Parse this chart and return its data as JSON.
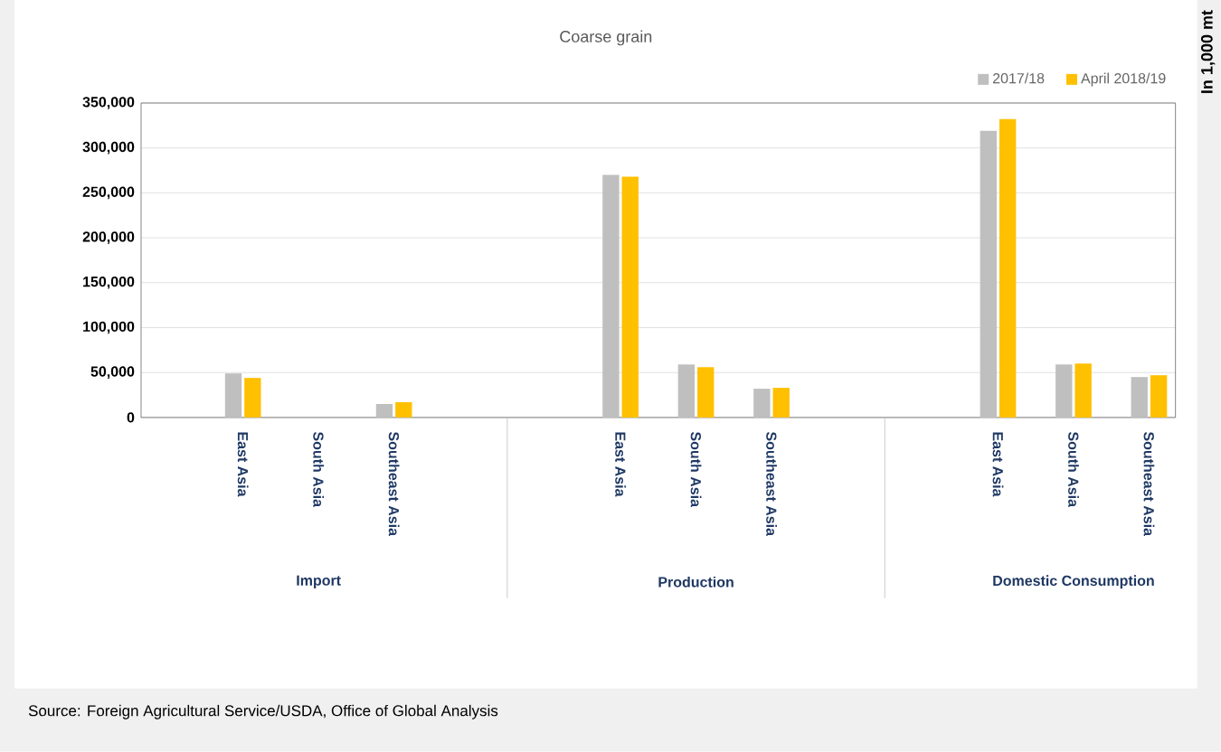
{
  "chart_data": {
    "type": "bar",
    "title": "Coarse grain",
    "categories": [
      "East Asia",
      "South Asia",
      "Southeast Asia",
      null,
      null,
      "East Asia",
      "South Asia",
      "Southeast Asia",
      null,
      null,
      "East Asia",
      "South Asia",
      "Southeast Asia"
    ],
    "series": [
      {
        "name": "2017/18",
        "color": "#bfbfbf",
        "values": [
          49000,
          0,
          15000,
          null,
          null,
          270000,
          59000,
          32000,
          null,
          null,
          319000,
          59000,
          45000
        ]
      },
      {
        "name": "April 2018/19",
        "color": "#ffc000",
        "values": [
          44000,
          0,
          17000,
          null,
          null,
          268000,
          56000,
          33000,
          null,
          null,
          332000,
          60000,
          47000
        ]
      }
    ],
    "ylim": [
      0,
      350000
    ],
    "yticks": [
      0,
      {
        "value": 50000,
        "label": "50,000"
      },
      {
        "value": 100000,
        "label": "100,000"
      },
      {
        "value": 150000,
        "label": "150,000"
      },
      {
        "value": 200000,
        "label": "200,000"
      },
      {
        "value": 250000,
        "label": "250,000"
      },
      {
        "value": 300000,
        "label": "300,000"
      },
      {
        "value": 350000,
        "label": "350,000"
      }
    ],
    "grid": "y",
    "legend": "top right",
    "annotations": [
      "Import",
      "Production",
      "Domestic Consumption",
      "In 1,000 mt",
      "Source: Foreign Agricultural Service/USDA, Office of Global Analysis"
    ]
  }
}
